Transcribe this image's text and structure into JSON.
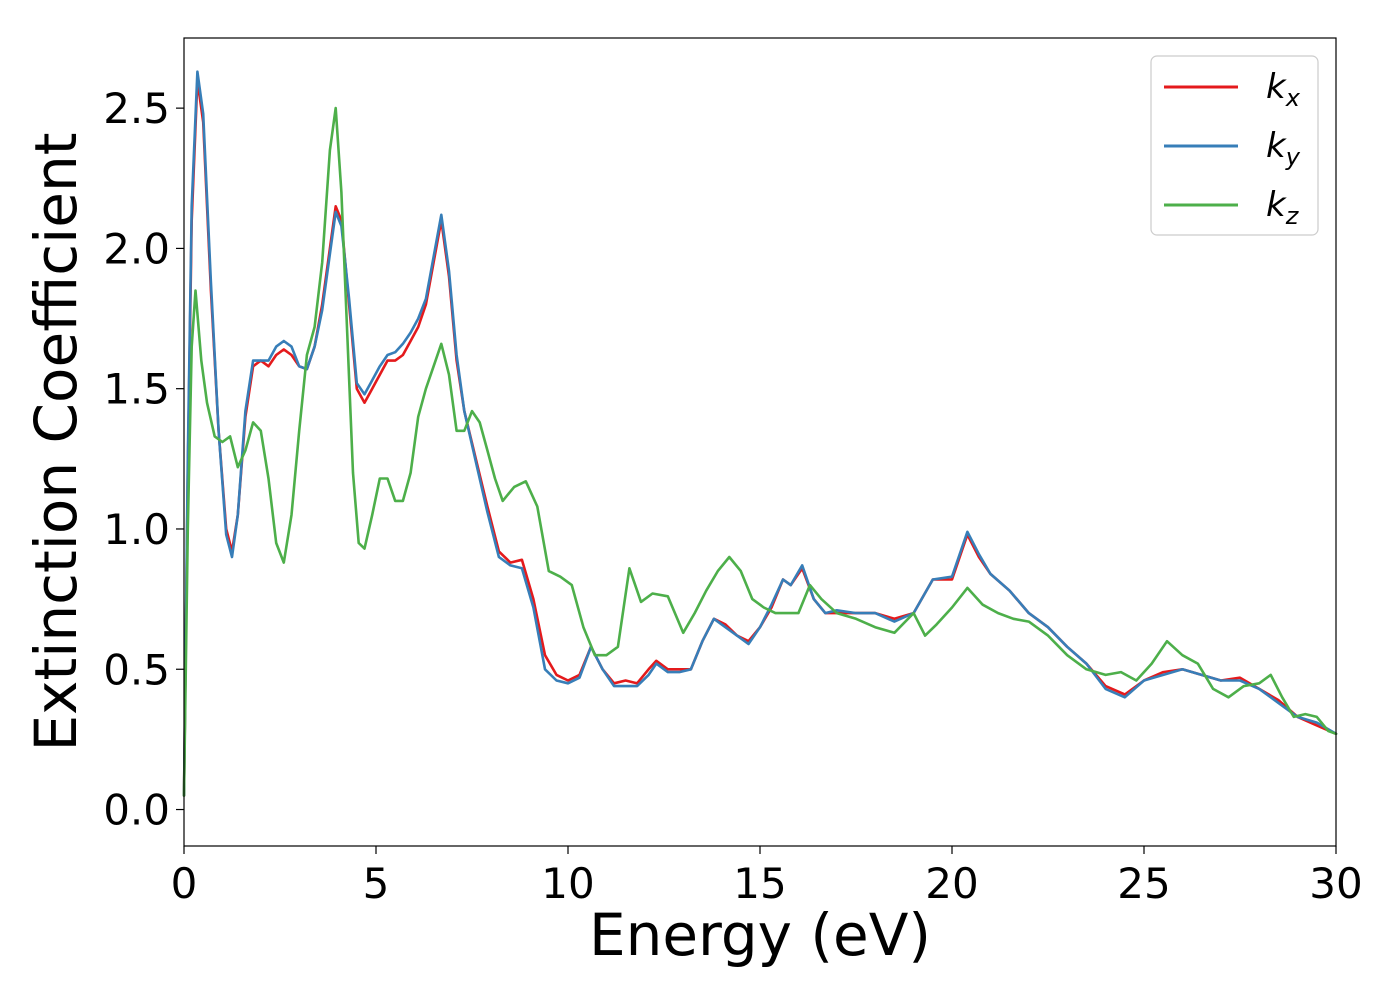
{
  "chart_data": {
    "type": "line",
    "title": "",
    "xlabel": "Energy (eV)",
    "ylabel": "Extinction Coefficient",
    "xlim": [
      0,
      30
    ],
    "ylim": [
      -0.13,
      2.75
    ],
    "xticks": [
      0,
      5,
      10,
      15,
      20,
      25,
      30
    ],
    "xtick_labels": [
      "0",
      "5",
      "10",
      "15",
      "20",
      "25",
      "30"
    ],
    "yticks": [
      0.0,
      0.5,
      1.0,
      1.5,
      2.0,
      2.5
    ],
    "ytick_labels": [
      "0.0",
      "0.5",
      "1.0",
      "1.5",
      "2.0",
      "2.5"
    ],
    "grid": false,
    "legend_position": "top-right",
    "series": [
      {
        "name": "k_x",
        "label_main": "k",
        "label_sub": "x",
        "color": "#e41a1c",
        "x": [
          0,
          0.1,
          0.2,
          0.35,
          0.5,
          0.7,
          0.9,
          1.1,
          1.25,
          1.4,
          1.6,
          1.8,
          2.0,
          2.2,
          2.4,
          2.6,
          2.8,
          3.0,
          3.2,
          3.4,
          3.6,
          3.8,
          3.95,
          4.1,
          4.3,
          4.5,
          4.7,
          4.9,
          5.1,
          5.3,
          5.5,
          5.7,
          5.9,
          6.1,
          6.3,
          6.5,
          6.7,
          6.9,
          7.1,
          7.3,
          7.6,
          7.9,
          8.2,
          8.5,
          8.8,
          9.1,
          9.4,
          9.7,
          10.0,
          10.3,
          10.6,
          10.9,
          11.2,
          11.5,
          11.8,
          12.1,
          12.3,
          12.6,
          12.9,
          13.2,
          13.5,
          13.8,
          14.1,
          14.4,
          14.7,
          15.0,
          15.3,
          15.6,
          15.8,
          16.1,
          16.4,
          16.7,
          17.0,
          17.5,
          18.0,
          18.5,
          19.0,
          19.5,
          20.0,
          20.4,
          20.7,
          21.0,
          21.5,
          22.0,
          22.5,
          23.0,
          23.5,
          24.0,
          24.5,
          25.0,
          25.5,
          26.0,
          26.5,
          27.0,
          27.5,
          28.0,
          28.5,
          29.0,
          29.5,
          30.0
        ],
        "y": [
          0.05,
          1.2,
          2.1,
          2.6,
          2.45,
          1.85,
          1.35,
          1.0,
          0.92,
          1.05,
          1.4,
          1.58,
          1.6,
          1.58,
          1.62,
          1.64,
          1.62,
          1.58,
          1.57,
          1.65,
          1.8,
          2.0,
          2.15,
          2.1,
          1.8,
          1.5,
          1.45,
          1.5,
          1.55,
          1.6,
          1.6,
          1.62,
          1.67,
          1.72,
          1.8,
          1.95,
          2.1,
          1.9,
          1.6,
          1.42,
          1.25,
          1.08,
          0.92,
          0.88,
          0.89,
          0.75,
          0.55,
          0.48,
          0.46,
          0.48,
          0.58,
          0.5,
          0.45,
          0.46,
          0.45,
          0.5,
          0.53,
          0.5,
          0.5,
          0.5,
          0.6,
          0.68,
          0.66,
          0.62,
          0.6,
          0.65,
          0.72,
          0.82,
          0.8,
          0.86,
          0.75,
          0.7,
          0.7,
          0.7,
          0.7,
          0.68,
          0.7,
          0.82,
          0.82,
          0.98,
          0.9,
          0.84,
          0.78,
          0.7,
          0.65,
          0.58,
          0.52,
          0.44,
          0.41,
          0.46,
          0.49,
          0.5,
          0.48,
          0.46,
          0.47,
          0.43,
          0.39,
          0.33,
          0.3,
          0.27
        ]
      },
      {
        "name": "k_y",
        "label_main": "k",
        "label_sub": "y",
        "color": "#377eb8",
        "x": [
          0,
          0.1,
          0.2,
          0.35,
          0.5,
          0.7,
          0.9,
          1.1,
          1.25,
          1.4,
          1.6,
          1.8,
          2.0,
          2.2,
          2.4,
          2.6,
          2.8,
          3.0,
          3.2,
          3.4,
          3.6,
          3.8,
          3.95,
          4.1,
          4.3,
          4.5,
          4.7,
          4.9,
          5.1,
          5.3,
          5.5,
          5.7,
          5.9,
          6.1,
          6.3,
          6.5,
          6.7,
          6.9,
          7.1,
          7.3,
          7.6,
          7.9,
          8.2,
          8.5,
          8.8,
          9.1,
          9.4,
          9.7,
          10.0,
          10.3,
          10.6,
          10.9,
          11.2,
          11.5,
          11.8,
          12.1,
          12.3,
          12.6,
          12.9,
          13.2,
          13.5,
          13.8,
          14.1,
          14.4,
          14.7,
          15.0,
          15.3,
          15.6,
          15.8,
          16.1,
          16.4,
          16.7,
          17.0,
          17.5,
          18.0,
          18.5,
          19.0,
          19.5,
          20.0,
          20.4,
          20.7,
          21.0,
          21.5,
          22.0,
          22.5,
          23.0,
          23.5,
          24.0,
          24.5,
          25.0,
          25.5,
          26.0,
          26.5,
          27.0,
          27.5,
          28.0,
          28.5,
          29.0,
          29.5,
          30.0
        ],
        "y": [
          0.05,
          1.25,
          2.15,
          2.63,
          2.48,
          1.88,
          1.35,
          0.98,
          0.9,
          1.05,
          1.42,
          1.6,
          1.6,
          1.6,
          1.65,
          1.67,
          1.65,
          1.58,
          1.57,
          1.65,
          1.78,
          1.98,
          2.13,
          2.08,
          1.82,
          1.52,
          1.48,
          1.53,
          1.58,
          1.62,
          1.63,
          1.66,
          1.7,
          1.75,
          1.82,
          1.97,
          2.12,
          1.92,
          1.62,
          1.42,
          1.24,
          1.06,
          0.9,
          0.87,
          0.86,
          0.72,
          0.5,
          0.46,
          0.45,
          0.47,
          0.58,
          0.5,
          0.44,
          0.44,
          0.44,
          0.48,
          0.52,
          0.49,
          0.49,
          0.5,
          0.6,
          0.68,
          0.65,
          0.62,
          0.59,
          0.65,
          0.73,
          0.82,
          0.8,
          0.87,
          0.75,
          0.7,
          0.71,
          0.7,
          0.7,
          0.67,
          0.7,
          0.82,
          0.83,
          0.99,
          0.91,
          0.84,
          0.78,
          0.7,
          0.65,
          0.58,
          0.52,
          0.43,
          0.4,
          0.46,
          0.48,
          0.5,
          0.48,
          0.46,
          0.46,
          0.43,
          0.38,
          0.33,
          0.31,
          0.27
        ]
      },
      {
        "name": "k_z",
        "label_main": "k",
        "label_sub": "z",
        "color": "#4daf4a",
        "x": [
          0,
          0.1,
          0.2,
          0.3,
          0.45,
          0.6,
          0.8,
          1.0,
          1.2,
          1.4,
          1.6,
          1.8,
          2.0,
          2.2,
          2.4,
          2.6,
          2.8,
          3.0,
          3.2,
          3.4,
          3.6,
          3.8,
          3.95,
          4.1,
          4.25,
          4.4,
          4.55,
          4.7,
          4.9,
          5.1,
          5.3,
          5.5,
          5.7,
          5.9,
          6.1,
          6.3,
          6.5,
          6.7,
          6.9,
          7.1,
          7.3,
          7.5,
          7.7,
          7.9,
          8.1,
          8.3,
          8.6,
          8.9,
          9.2,
          9.5,
          9.8,
          10.1,
          10.4,
          10.7,
          11.0,
          11.3,
          11.6,
          11.9,
          12.2,
          12.6,
          13.0,
          13.3,
          13.6,
          13.9,
          14.2,
          14.5,
          14.8,
          15.1,
          15.4,
          15.7,
          16.0,
          16.3,
          16.6,
          17.0,
          17.5,
          18.0,
          18.5,
          19.0,
          19.3,
          19.6,
          20.0,
          20.4,
          20.8,
          21.2,
          21.6,
          22.0,
          22.5,
          23.0,
          23.5,
          24.0,
          24.4,
          24.8,
          25.2,
          25.6,
          26.0,
          26.4,
          26.8,
          27.2,
          27.6,
          28.0,
          28.3,
          28.6,
          28.9,
          29.2,
          29.5,
          29.8,
          30.0
        ],
        "y": [
          0.05,
          1.0,
          1.65,
          1.85,
          1.6,
          1.45,
          1.33,
          1.31,
          1.33,
          1.22,
          1.28,
          1.38,
          1.35,
          1.18,
          0.95,
          0.88,
          1.05,
          1.35,
          1.62,
          1.72,
          1.95,
          2.35,
          2.5,
          2.2,
          1.7,
          1.2,
          0.95,
          0.93,
          1.05,
          1.18,
          1.18,
          1.1,
          1.1,
          1.2,
          1.4,
          1.5,
          1.58,
          1.66,
          1.55,
          1.35,
          1.35,
          1.42,
          1.38,
          1.28,
          1.18,
          1.1,
          1.15,
          1.17,
          1.08,
          0.85,
          0.83,
          0.8,
          0.65,
          0.55,
          0.55,
          0.58,
          0.86,
          0.74,
          0.77,
          0.76,
          0.63,
          0.7,
          0.78,
          0.85,
          0.9,
          0.85,
          0.75,
          0.72,
          0.7,
          0.7,
          0.7,
          0.8,
          0.75,
          0.7,
          0.68,
          0.65,
          0.63,
          0.7,
          0.62,
          0.66,
          0.72,
          0.79,
          0.73,
          0.7,
          0.68,
          0.67,
          0.62,
          0.55,
          0.5,
          0.48,
          0.49,
          0.46,
          0.52,
          0.6,
          0.55,
          0.52,
          0.43,
          0.4,
          0.44,
          0.45,
          0.48,
          0.4,
          0.33,
          0.34,
          0.33,
          0.28,
          0.27
        ]
      }
    ]
  }
}
